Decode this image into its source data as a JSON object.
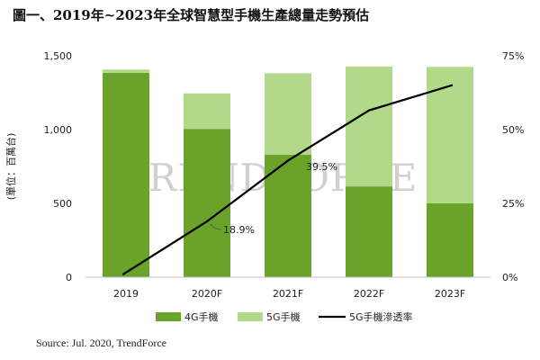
{
  "title": "圖一、2019年~2023年全球智慧型手機生產總量走勢預估",
  "source": "Source: Jul. 2020, TrendForce",
  "watermark": "TRENDFORCE",
  "chart_data": {
    "type": "bar",
    "categories": [
      "2019",
      "2020F",
      "2021F",
      "2022F",
      "2023F"
    ],
    "series": [
      {
        "name": "4G手機",
        "type": "bar",
        "stack": "phones",
        "axis": "left",
        "color": "#6aa22a",
        "values": [
          1385,
          1005,
          830,
          615,
          500
        ]
      },
      {
        "name": "5G手機",
        "type": "bar",
        "stack": "phones",
        "axis": "left",
        "color": "#b2d88a",
        "values": [
          22,
          240,
          552,
          812,
          925
        ]
      },
      {
        "name": "5G手機滲透率",
        "type": "line",
        "axis": "right",
        "color": "#000000",
        "values": [
          1.0,
          18.9,
          39.5,
          56.5,
          65.0
        ]
      }
    ],
    "ylabel": "(單位：百萬台)",
    "ylim": [
      0,
      1500
    ],
    "yticks": [
      "0",
      "500",
      "1,000",
      "1,500"
    ],
    "y2lim": [
      0,
      75
    ],
    "y2ticks": [
      "0%",
      "25%",
      "50%",
      "75%"
    ],
    "annotations": [
      "18.9%",
      "39.5%"
    ],
    "grid": false,
    "legend_position": "bottom"
  }
}
